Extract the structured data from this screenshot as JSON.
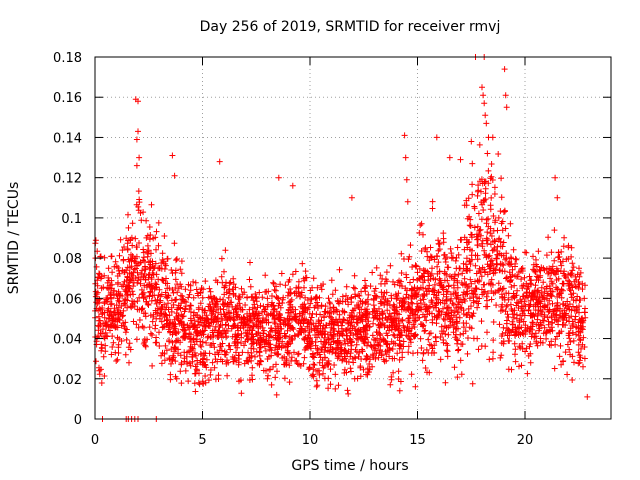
{
  "chart_data": {
    "type": "scatter",
    "title": "Day 256 of 2019, SRMTID for receiver rmvj",
    "xlabel": "GPS time / hours",
    "ylabel": "SRMTID / TECUs",
    "xlim": [
      0,
      24
    ],
    "ylim": [
      0,
      0.18
    ],
    "x_ticks": [
      0,
      5,
      10,
      15,
      20
    ],
    "x_tick_labels": [
      "0",
      "5",
      "10",
      "15",
      "20"
    ],
    "y_ticks": [
      0,
      0.02,
      0.04,
      0.06,
      0.08,
      0.1,
      0.12,
      0.14,
      0.16,
      0.18
    ],
    "y_tick_labels": [
      "0",
      "0.02",
      "0.04",
      "0.06",
      "0.08",
      "0.1",
      "0.12",
      "0.14",
      "0.16",
      "0.18"
    ],
    "grid": true,
    "marker": "+",
    "series_color": "#ff0000",
    "series": [
      {
        "name": "SRMTID",
        "trend": [
          [
            0.0,
            0.055,
            0.014
          ],
          [
            0.5,
            0.05,
            0.013
          ],
          [
            1.0,
            0.057,
            0.013
          ],
          [
            1.5,
            0.065,
            0.015
          ],
          [
            2.0,
            0.078,
            0.02
          ],
          [
            2.5,
            0.07,
            0.017
          ],
          [
            3.0,
            0.06,
            0.015
          ],
          [
            3.5,
            0.052,
            0.014
          ],
          [
            4.0,
            0.046,
            0.013
          ],
          [
            4.5,
            0.042,
            0.012
          ],
          [
            5.0,
            0.04,
            0.012
          ],
          [
            5.5,
            0.046,
            0.012
          ],
          [
            6.0,
            0.05,
            0.013
          ],
          [
            6.5,
            0.047,
            0.012
          ],
          [
            7.0,
            0.045,
            0.012
          ],
          [
            7.5,
            0.046,
            0.012
          ],
          [
            8.0,
            0.044,
            0.012
          ],
          [
            8.5,
            0.046,
            0.012
          ],
          [
            9.0,
            0.047,
            0.012
          ],
          [
            9.5,
            0.05,
            0.013
          ],
          [
            10.0,
            0.047,
            0.012
          ],
          [
            10.5,
            0.044,
            0.012
          ],
          [
            11.0,
            0.042,
            0.011
          ],
          [
            11.5,
            0.04,
            0.011
          ],
          [
            12.0,
            0.043,
            0.012
          ],
          [
            12.5,
            0.045,
            0.012
          ],
          [
            13.0,
            0.047,
            0.013
          ],
          [
            13.5,
            0.048,
            0.013
          ],
          [
            14.0,
            0.045,
            0.013
          ],
          [
            14.5,
            0.055,
            0.015
          ],
          [
            15.0,
            0.058,
            0.015
          ],
          [
            15.5,
            0.062,
            0.016
          ],
          [
            16.0,
            0.063,
            0.016
          ],
          [
            16.5,
            0.058,
            0.015
          ],
          [
            17.0,
            0.062,
            0.017
          ],
          [
            17.5,
            0.075,
            0.022
          ],
          [
            18.0,
            0.085,
            0.025
          ],
          [
            18.5,
            0.08,
            0.022
          ],
          [
            19.0,
            0.07,
            0.02
          ],
          [
            19.5,
            0.055,
            0.014
          ],
          [
            20.0,
            0.055,
            0.013
          ],
          [
            20.5,
            0.057,
            0.013
          ],
          [
            21.0,
            0.058,
            0.014
          ],
          [
            21.5,
            0.06,
            0.015
          ],
          [
            22.0,
            0.058,
            0.015
          ],
          [
            22.5,
            0.05,
            0.013
          ],
          [
            22.8,
            0.048,
            0.012
          ]
        ],
        "outliers": [
          [
            0.35,
            0.0
          ],
          [
            1.45,
            0.0
          ],
          [
            1.55,
            0.0
          ],
          [
            1.7,
            0.0
          ],
          [
            1.85,
            0.0
          ],
          [
            2.0,
            0.0
          ],
          [
            2.85,
            0.0
          ],
          [
            1.9,
            0.159
          ],
          [
            2.0,
            0.158
          ],
          [
            2.0,
            0.143
          ],
          [
            1.95,
            0.139
          ],
          [
            2.05,
            0.13
          ],
          [
            1.95,
            0.126
          ],
          [
            3.6,
            0.131
          ],
          [
            3.7,
            0.121
          ],
          [
            5.8,
            0.128
          ],
          [
            8.55,
            0.12
          ],
          [
            9.2,
            0.116
          ],
          [
            8.45,
            0.012
          ],
          [
            11.95,
            0.11
          ],
          [
            14.4,
            0.141
          ],
          [
            14.45,
            0.13
          ],
          [
            14.5,
            0.119
          ],
          [
            14.55,
            0.108
          ],
          [
            15.9,
            0.14
          ],
          [
            16.5,
            0.13
          ],
          [
            17.0,
            0.129
          ],
          [
            17.5,
            0.138
          ],
          [
            17.55,
            0.127
          ],
          [
            17.7,
            0.18
          ],
          [
            18.1,
            0.18
          ],
          [
            18.0,
            0.165
          ],
          [
            18.05,
            0.161
          ],
          [
            18.1,
            0.157
          ],
          [
            18.15,
            0.151
          ],
          [
            18.2,
            0.147
          ],
          [
            18.3,
            0.14
          ],
          [
            18.25,
            0.132
          ],
          [
            18.5,
            0.14
          ],
          [
            19.05,
            0.174
          ],
          [
            19.1,
            0.161
          ],
          [
            19.15,
            0.155
          ],
          [
            21.4,
            0.12
          ],
          [
            21.5,
            0.11
          ],
          [
            16.3,
            0.018
          ],
          [
            14.9,
            0.016
          ],
          [
            5.15,
            0.018
          ],
          [
            22.9,
            0.011
          ],
          [
            0.2,
            0.024
          ],
          [
            22.7,
            0.026
          ]
        ]
      }
    ]
  }
}
